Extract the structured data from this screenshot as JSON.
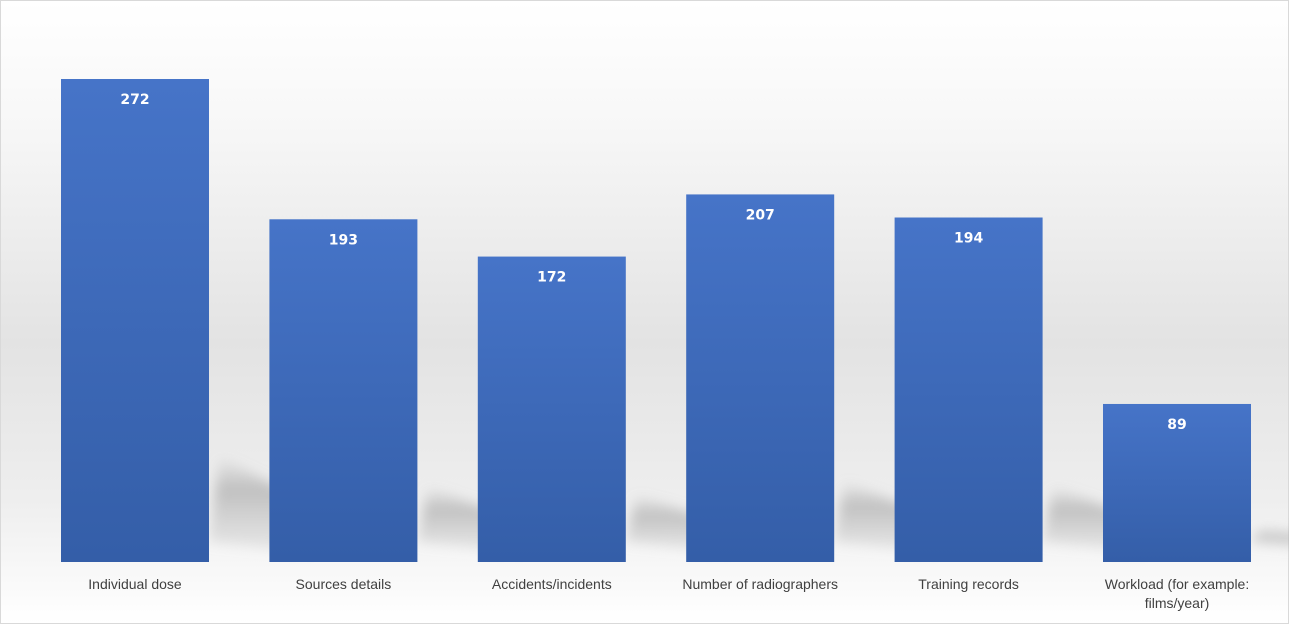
{
  "chart_data": {
    "type": "bar",
    "categories": [
      [
        "Individual dose"
      ],
      [
        "Sources details"
      ],
      [
        "Accidents/incidents"
      ],
      [
        "Number of radiographers"
      ],
      [
        "Training records"
      ],
      [
        "Workload (for example:",
        "films/year)"
      ]
    ],
    "values": [
      272,
      193,
      172,
      207,
      194,
      89
    ],
    "ylim": [
      0,
      272
    ],
    "data_labels": true,
    "grid": false,
    "legend": "none",
    "bar_color": "#4472c4"
  }
}
